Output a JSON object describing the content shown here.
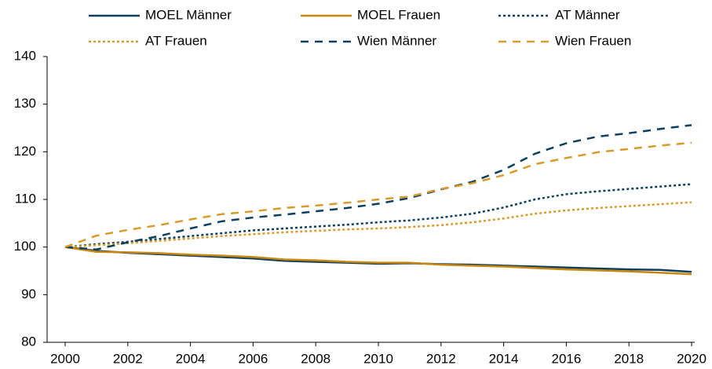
{
  "chart_data": {
    "type": "line",
    "x": [
      2000,
      2001,
      2002,
      2003,
      2004,
      2005,
      2006,
      2007,
      2008,
      2009,
      2010,
      2011,
      2012,
      2013,
      2014,
      2015,
      2016,
      2017,
      2018,
      2019,
      2020
    ],
    "xlim": [
      2000,
      2020
    ],
    "xticks": [
      2000,
      2002,
      2004,
      2006,
      2008,
      2010,
      2012,
      2014,
      2016,
      2018,
      2020
    ],
    "ylim": [
      80,
      140
    ],
    "yticks": [
      80,
      90,
      100,
      110,
      120,
      130,
      140
    ],
    "grid": false,
    "legend": "top",
    "series": [
      {
        "name": "MOEL Männer",
        "color": "#0d3f5e",
        "style": "solid",
        "values": [
          100,
          99.2,
          98.8,
          98.5,
          98.2,
          97.9,
          97.6,
          97.1,
          96.9,
          96.7,
          96.5,
          96.6,
          96.4,
          96.3,
          96.1,
          95.9,
          95.7,
          95.5,
          95.3,
          95.2,
          94.8
        ]
      },
      {
        "name": "MOEL Frauen",
        "color": "#c8860f",
        "style": "solid",
        "values": [
          100,
          99.0,
          98.9,
          98.7,
          98.4,
          98.2,
          97.9,
          97.4,
          97.2,
          96.9,
          96.7,
          96.7,
          96.3,
          96.1,
          95.9,
          95.6,
          95.3,
          95.1,
          94.9,
          94.6,
          94.3
        ]
      },
      {
        "name": "AT Männer",
        "color": "#0d3f5e",
        "style": "dotted",
        "values": [
          100,
          100.6,
          101.1,
          101.7,
          102.3,
          102.9,
          103.5,
          103.9,
          104.3,
          104.7,
          105.2,
          105.6,
          106.2,
          107.0,
          108.3,
          110.0,
          111.1,
          111.7,
          112.2,
          112.7,
          113.2
        ]
      },
      {
        "name": "AT Frauen",
        "color": "#d89a2a",
        "style": "dotted",
        "values": [
          100,
          100.4,
          100.8,
          101.3,
          101.8,
          102.3,
          102.7,
          103.1,
          103.4,
          103.7,
          103.9,
          104.2,
          104.6,
          105.2,
          106.0,
          107.0,
          107.7,
          108.2,
          108.6,
          109.0,
          109.4
        ]
      },
      {
        "name": "Wien Männer",
        "color": "#0d3f5e",
        "style": "dashed",
        "values": [
          100,
          99.5,
          101.0,
          102.3,
          103.9,
          105.4,
          106.2,
          106.8,
          107.5,
          108.2,
          109.1,
          110.3,
          112.1,
          113.7,
          116.2,
          119.6,
          121.8,
          123.2,
          123.9,
          124.8,
          125.6
        ]
      },
      {
        "name": "Wien Frauen",
        "color": "#d89a2a",
        "style": "dashed",
        "values": [
          100,
          102.4,
          103.6,
          104.6,
          105.8,
          106.9,
          107.5,
          108.2,
          108.7,
          109.3,
          110.0,
          110.6,
          112.2,
          113.4,
          115.1,
          117.4,
          118.7,
          119.9,
          120.6,
          121.3,
          121.9
        ]
      }
    ]
  }
}
